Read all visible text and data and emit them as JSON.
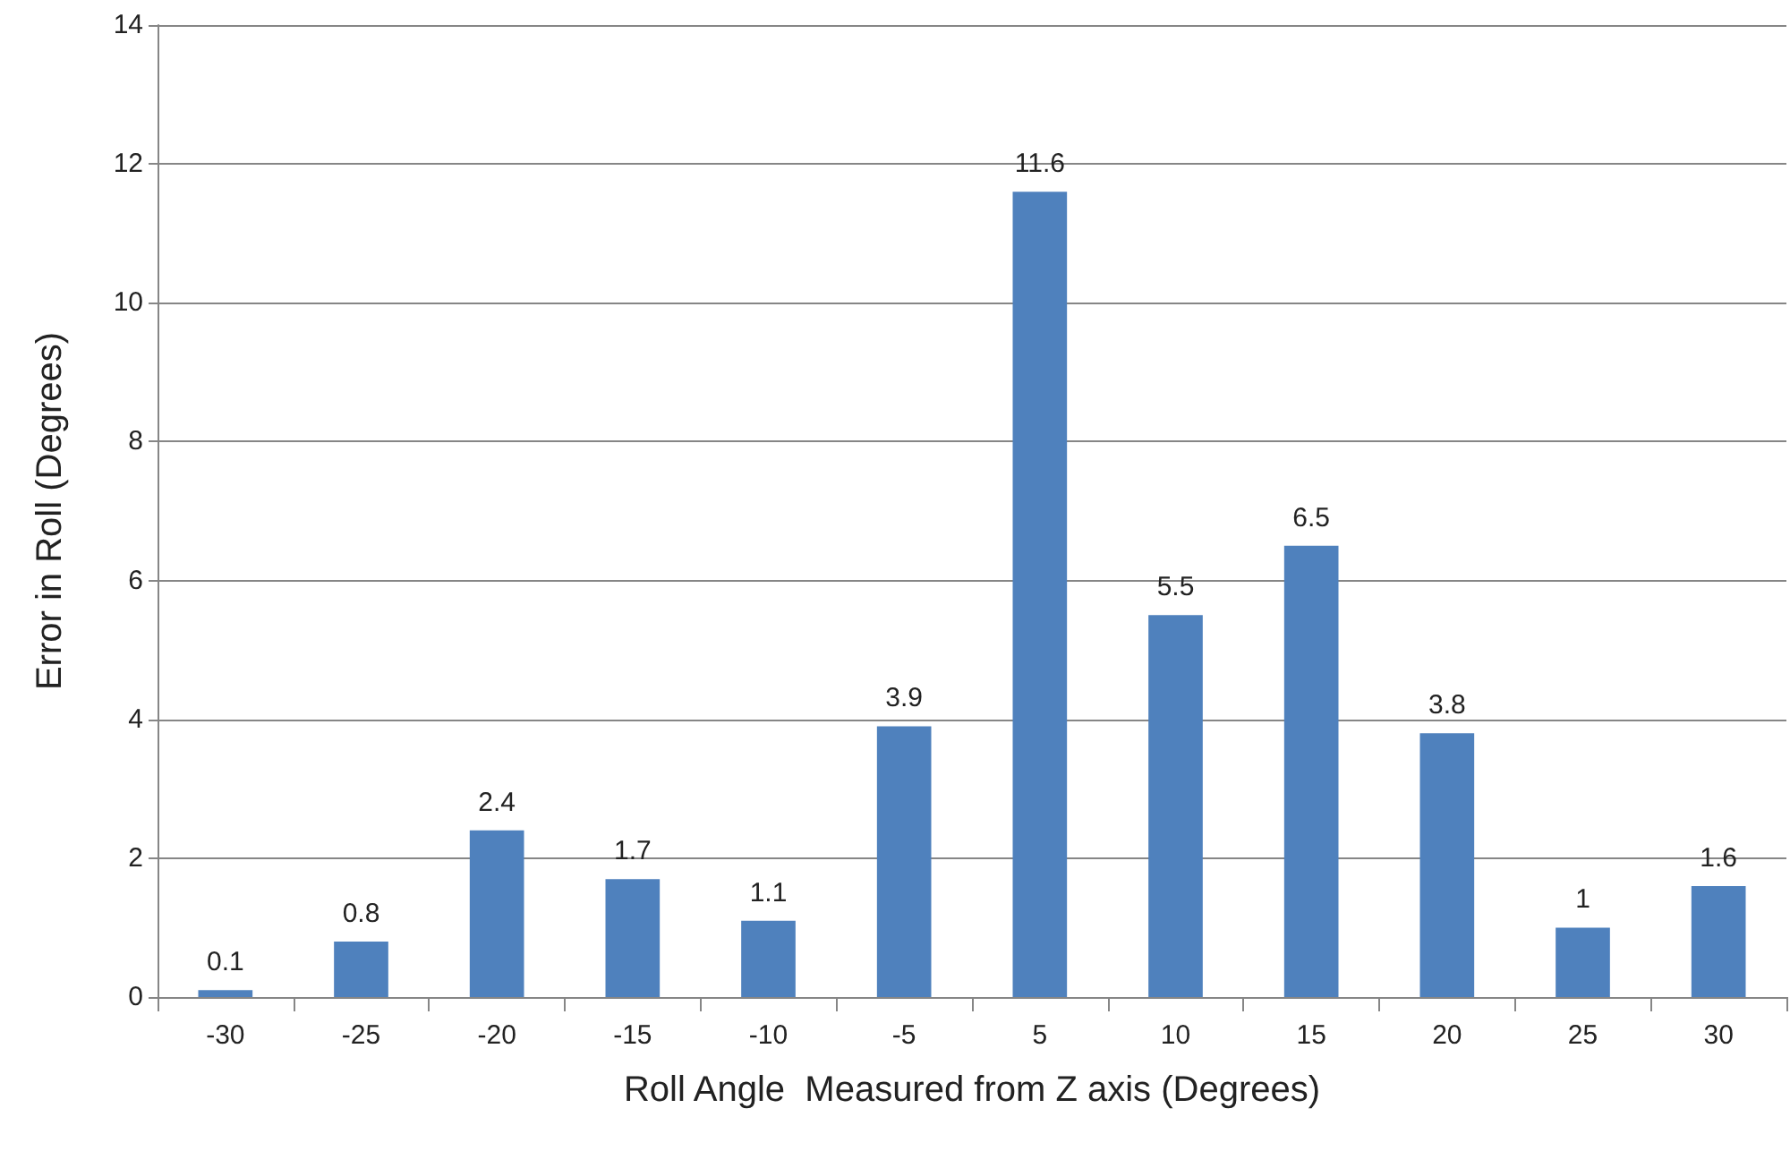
{
  "chart_data": {
    "type": "bar",
    "xlabel": "Roll Angle  Measured from Z axis (Degrees)",
    "ylabel": "Error in Roll (Degrees)",
    "categories": [
      "-30",
      "-25",
      "-20",
      "-15",
      "-10",
      "-5",
      "5",
      "10",
      "15",
      "20",
      "25",
      "30"
    ],
    "values": [
      0.1,
      0.8,
      2.4,
      1.7,
      1.1,
      3.9,
      11.6,
      5.5,
      6.5,
      3.8,
      1,
      1.6
    ],
    "color": "#4f81bd",
    "ylim": [
      0,
      14
    ],
    "yticks": [
      0,
      2,
      4,
      6,
      8,
      10,
      12,
      14
    ],
    "grid": "y",
    "data_labels": true
  }
}
